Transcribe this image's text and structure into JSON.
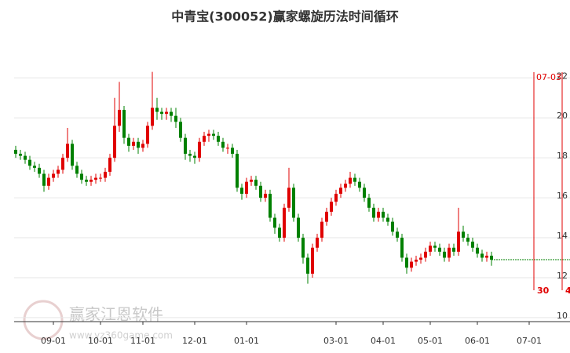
{
  "chart_data": {
    "type": "candlestick",
    "title": "中青宝(300052)赢家螺旋历法时间循环",
    "watermark": "赢家江恩软件",
    "watermark_url": "www.yz360game.com",
    "up_color": "#e00000",
    "down_color": "#008000",
    "ylim": [
      9.8,
      22.6
    ],
    "yticks": [
      10,
      12,
      14,
      16,
      18,
      20,
      22
    ],
    "grid": true,
    "categories": [
      null,
      null,
      null,
      null,
      null,
      null,
      null,
      null,
      "09-01",
      null,
      null,
      null,
      null,
      null,
      null,
      null,
      null,
      null,
      "10-01",
      null,
      null,
      null,
      null,
      null,
      null,
      null,
      null,
      "11-01",
      null,
      null,
      null,
      null,
      null,
      null,
      null,
      null,
      null,
      null,
      "12-01",
      null,
      null,
      null,
      null,
      null,
      null,
      null,
      null,
      null,
      null,
      "01-01",
      null,
      null,
      null,
      null,
      null,
      null,
      null,
      null,
      null,
      null,
      null,
      null,
      null,
      null,
      null,
      null,
      null,
      null,
      "03-01",
      null,
      null,
      null,
      null,
      null,
      null,
      null,
      null,
      null,
      "04-01",
      null,
      null,
      null,
      null,
      null,
      null,
      null,
      null,
      null,
      "05-01",
      null,
      null,
      null,
      null,
      null,
      null,
      null,
      null,
      null,
      "06-01",
      null,
      null,
      null,
      null,
      null,
      null,
      null,
      null,
      null,
      null,
      "07-01",
      null,
      null,
      null,
      null,
      null,
      null,
      null
    ],
    "open": [
      18.4,
      18.2,
      18.1,
      17.9,
      17.6,
      17.5,
      17.2,
      16.6,
      17.0,
      17.2,
      17.4,
      18.0,
      18.7,
      17.6,
      17.2,
      16.9,
      16.8,
      16.9,
      17.0,
      17.0,
      17.3,
      18.0,
      19.6,
      20.4,
      19.0,
      18.6,
      18.8,
      18.5,
      18.7,
      19.6,
      20.5,
      20.3,
      20.2,
      20.3,
      20.1,
      19.8,
      19.0,
      18.2,
      18.1,
      18.0,
      18.8,
      19.1,
      19.2,
      19.1,
      18.8,
      18.5,
      18.5,
      18.2,
      16.5,
      16.2,
      16.8,
      16.9,
      16.6,
      16.0,
      16.2,
      15.0,
      14.5,
      14.0,
      15.5,
      16.5,
      15.0,
      14.0,
      13.0,
      12.2,
      13.5,
      14.0,
      14.8,
      15.3,
      15.8,
      16.2,
      16.5,
      16.7,
      17.0,
      16.8,
      16.5,
      16.0,
      15.5,
      15.0,
      15.3,
      15.0,
      14.8,
      14.3,
      14.0,
      13.0,
      12.5,
      12.8,
      12.9,
      13.0,
      13.3,
      13.6,
      13.5,
      13.3,
      13.0,
      13.5,
      13.3,
      14.3,
      14.0,
      13.8,
      13.5,
      13.2,
      13.0,
      13.1,
      null,
      null,
      null,
      null,
      null,
      null,
      null,
      null,
      null,
      null,
      null,
      null,
      null,
      null,
      null
    ],
    "high": [
      18.6,
      18.4,
      18.3,
      18.1,
      17.8,
      17.7,
      17.4,
      17.2,
      17.4,
      17.6,
      18.2,
      19.5,
      18.9,
      17.8,
      17.4,
      17.1,
      17.1,
      17.2,
      17.2,
      17.5,
      18.2,
      21.0,
      21.8,
      20.6,
      19.2,
      19.0,
      19.0,
      18.9,
      19.8,
      22.3,
      21.0,
      20.5,
      20.5,
      20.5,
      20.5,
      20.0,
      19.2,
      18.4,
      18.3,
      19.0,
      19.3,
      19.4,
      19.4,
      19.3,
      19.0,
      18.7,
      18.7,
      18.4,
      16.7,
      17.0,
      17.1,
      17.1,
      16.8,
      16.4,
      16.4,
      15.2,
      14.7,
      15.7,
      17.5,
      16.7,
      15.2,
      14.2,
      13.2,
      13.7,
      14.2,
      15.0,
      15.5,
      16.0,
      16.4,
      16.7,
      16.9,
      17.3,
      17.2,
      17.0,
      16.7,
      16.2,
      15.7,
      15.5,
      15.5,
      15.2,
      15.0,
      14.5,
      14.2,
      13.2,
      13.0,
      13.1,
      13.2,
      13.5,
      13.8,
      13.8,
      13.7,
      13.5,
      13.7,
      13.7,
      15.5,
      14.6,
      14.2,
      14.0,
      13.7,
      13.4,
      13.3,
      13.3,
      null,
      null,
      null,
      null,
      null,
      null,
      null,
      null,
      null,
      null,
      null,
      null,
      null,
      null,
      null
    ],
    "low": [
      18.0,
      17.9,
      17.7,
      17.4,
      17.3,
      17.0,
      16.3,
      16.4,
      16.8,
      17.0,
      17.2,
      17.8,
      17.4,
      17.0,
      16.7,
      16.6,
      16.6,
      16.7,
      16.8,
      16.8,
      17.1,
      17.8,
      19.3,
      18.7,
      18.3,
      18.4,
      18.2,
      18.3,
      18.5,
      19.4,
      19.9,
      19.9,
      19.9,
      19.8,
      19.5,
      18.8,
      17.9,
      17.8,
      17.7,
      17.8,
      18.6,
      18.8,
      18.9,
      18.6,
      18.3,
      18.2,
      18.0,
      16.3,
      15.9,
      16.0,
      16.6,
      16.4,
      15.8,
      15.8,
      14.8,
      14.2,
      13.8,
      13.8,
      15.3,
      14.8,
      13.8,
      12.7,
      11.7,
      12.0,
      13.3,
      13.8,
      14.6,
      15.1,
      15.6,
      16.0,
      16.3,
      16.5,
      16.6,
      16.3,
      15.8,
      15.3,
      14.8,
      14.8,
      14.8,
      14.6,
      14.1,
      13.8,
      12.8,
      12.2,
      12.3,
      12.6,
      12.7,
      12.8,
      13.1,
      13.3,
      13.1,
      12.8,
      12.8,
      13.1,
      13.1,
      13.8,
      13.6,
      13.3,
      13.0,
      12.8,
      12.8,
      12.6,
      null,
      null,
      null,
      null,
      null,
      null,
      null,
      null,
      null,
      null,
      null,
      null,
      null,
      null,
      null
    ],
    "close": [
      18.2,
      18.1,
      17.9,
      17.6,
      17.5,
      17.2,
      16.6,
      17.0,
      17.2,
      17.4,
      18.0,
      18.7,
      17.6,
      17.2,
      16.9,
      16.8,
      16.9,
      17.0,
      17.0,
      17.3,
      18.0,
      19.6,
      20.4,
      19.0,
      18.6,
      18.8,
      18.5,
      18.7,
      19.6,
      20.5,
      20.3,
      20.2,
      20.3,
      20.1,
      19.8,
      19.0,
      18.2,
      18.1,
      18.0,
      18.8,
      19.1,
      19.2,
      19.1,
      18.8,
      18.5,
      18.5,
      18.2,
      16.5,
      16.2,
      16.8,
      16.9,
      16.6,
      16.0,
      16.2,
      15.0,
      14.5,
      14.0,
      15.5,
      16.5,
      15.0,
      14.0,
      13.0,
      12.2,
      13.5,
      14.0,
      14.8,
      15.3,
      15.8,
      16.2,
      16.5,
      16.7,
      17.0,
      16.8,
      16.5,
      16.0,
      15.5,
      15.0,
      15.3,
      15.0,
      14.8,
      14.3,
      14.0,
      13.0,
      12.5,
      12.8,
      12.9,
      13.0,
      13.3,
      13.6,
      13.5,
      13.3,
      13.0,
      13.5,
      13.3,
      14.3,
      14.0,
      13.8,
      13.5,
      13.2,
      13.0,
      13.1,
      12.9,
      null,
      null,
      null,
      null,
      null,
      null,
      null,
      null,
      null,
      null,
      null,
      null,
      null,
      null,
      null
    ],
    "cycle_lines": [
      {
        "index": 110,
        "top_label": "07-03",
        "bottom_label": "30"
      },
      {
        "index": 116,
        "bottom_label": "4"
      }
    ]
  }
}
